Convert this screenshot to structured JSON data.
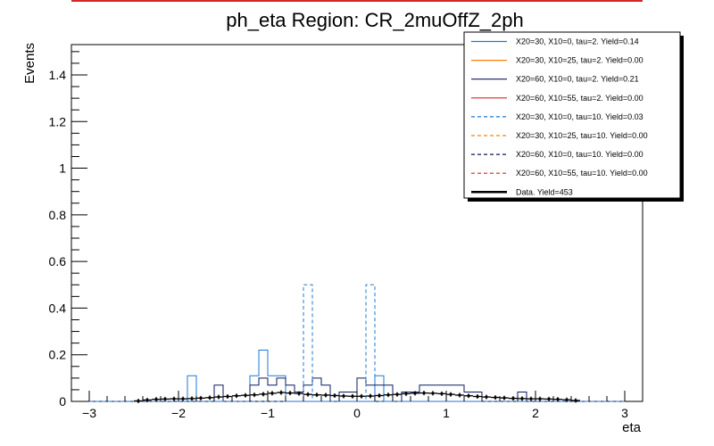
{
  "chart_data": {
    "type": "histogram",
    "title": "ph_eta Region: CR_2muOffZ_2ph",
    "xlabel": "eta",
    "ylabel": "Events",
    "xlim": [
      -3.2,
      3.2
    ],
    "ylim": [
      0,
      1.53
    ],
    "x_ticks": [
      -3,
      -2,
      -1,
      0,
      1,
      2,
      3
    ],
    "x_tick_labels": [
      "−3",
      "−2",
      "−1",
      "0",
      "1",
      "2",
      "3"
    ],
    "y_ticks": [
      0,
      0.2,
      0.4,
      0.6,
      0.8,
      1,
      1.2,
      1.4
    ],
    "y_tick_labels": [
      "0",
      "0.2",
      "0.4",
      "0.6",
      "0.8",
      "1",
      "1.2",
      "1.4"
    ],
    "bin_edges": [
      -3.0,
      -2.9,
      -2.8,
      -2.7,
      -2.6,
      -2.5,
      -2.4,
      -2.3,
      -2.2,
      -2.1,
      -2.0,
      -1.9,
      -1.8,
      -1.7,
      -1.6,
      -1.5,
      -1.4,
      -1.3,
      -1.2,
      -1.1,
      -1.0,
      -0.9,
      -0.8,
      -0.7,
      -0.6,
      -0.5,
      -0.4,
      -0.3,
      -0.2,
      -0.1,
      0.0,
      0.1,
      0.2,
      0.3,
      0.4,
      0.5,
      0.6,
      0.7,
      0.8,
      0.9,
      1.0,
      1.1,
      1.2,
      1.3,
      1.4,
      1.5,
      1.6,
      1.7,
      1.8,
      1.9,
      2.0,
      2.1,
      2.2,
      2.3,
      2.4,
      2.5,
      2.6,
      2.7,
      2.8,
      2.9,
      3.0
    ],
    "legend_position": "top-right",
    "series": [
      {
        "name": "X20=30, X10=0, tau=2. Yield=0.14",
        "color": "#1f77d4",
        "style": "solid",
        "values": [
          0,
          0,
          0,
          0,
          0,
          0,
          0,
          0,
          0,
          0,
          0,
          0.11,
          0,
          0,
          0,
          0,
          0,
          0,
          0.11,
          0.22,
          0.11,
          0.11,
          0,
          0,
          0,
          0,
          0,
          0,
          0,
          0,
          0,
          0,
          0.11,
          0,
          0,
          0,
          0,
          0,
          0,
          0,
          0,
          0,
          0,
          0,
          0,
          0,
          0,
          0,
          0,
          0,
          0,
          0,
          0,
          0,
          0,
          0,
          0,
          0,
          0,
          0
        ]
      },
      {
        "name": "X20=30, X10=25, tau=2. Yield=0.00",
        "color": "#ff7f0e",
        "style": "solid",
        "values": []
      },
      {
        "name": "X20=60, X10=0, tau=2. Yield=0.21",
        "color": "#0b1a5c",
        "style": "solid",
        "values": [
          0,
          0,
          0,
          0,
          0,
          0,
          0,
          0,
          0,
          0,
          0,
          0,
          0,
          0,
          0.07,
          0,
          0,
          0,
          0.07,
          0.1,
          0.07,
          0.1,
          0.07,
          0.04,
          0.07,
          0.1,
          0.07,
          0,
          0.04,
          0.04,
          0.1,
          0.07,
          0.07,
          0.07,
          0,
          0.04,
          0.04,
          0.07,
          0.07,
          0.07,
          0.07,
          0.07,
          0.04,
          0.04,
          0,
          0,
          0,
          0,
          0.04,
          0,
          0,
          0,
          0,
          0,
          0,
          0,
          0,
          0,
          0,
          0
        ]
      },
      {
        "name": "X20=60, X10=55, tau=2. Yield=0.00",
        "color": "#d62728",
        "style": "solid",
        "values": []
      },
      {
        "name": "X20=30, X10=0, tau=10. Yield=0.03",
        "color": "#1f77d4",
        "style": "dashed",
        "values": [
          0,
          0,
          0,
          0,
          0,
          0,
          0,
          0,
          0,
          0,
          0,
          0,
          0,
          0,
          0,
          0,
          0,
          0,
          0,
          0,
          0,
          0,
          0,
          0,
          0.5,
          0,
          0,
          0,
          0,
          0,
          0,
          0.5,
          0,
          0,
          0,
          0,
          0,
          0,
          0,
          0,
          0,
          0,
          0,
          0,
          0,
          0,
          0,
          0,
          0,
          0,
          0,
          0,
          0,
          0,
          0,
          0,
          0,
          0,
          0,
          0
        ]
      },
      {
        "name": "X20=30, X10=25, tau=10. Yield=0.00",
        "color": "#ff7f0e",
        "style": "dashed",
        "values": []
      },
      {
        "name": "X20=60, X10=0, tau=10. Yield=0.00",
        "color": "#0b1a5c",
        "style": "dashed",
        "values": []
      },
      {
        "name": "X20=60, X10=55, tau=10. Yield=0.00",
        "color": "#d62728",
        "style": "dashed",
        "values": []
      },
      {
        "name": "Data. Yield=453",
        "color": "#000000",
        "style": "points",
        "values": [
          0,
          0,
          0,
          0,
          0,
          0.002,
          0.006,
          0.009,
          0.01,
          0.011,
          0.011,
          0.012,
          0.014,
          0.016,
          0.019,
          0.021,
          0.024,
          0.026,
          0.028,
          0.031,
          0.035,
          0.038,
          0.036,
          0.034,
          0.03,
          0.028,
          0.027,
          0.025,
          0.023,
          0.022,
          0.022,
          0.023,
          0.025,
          0.028,
          0.03,
          0.033,
          0.035,
          0.036,
          0.035,
          0.033,
          0.03,
          0.027,
          0.024,
          0.021,
          0.019,
          0.017,
          0.015,
          0.013,
          0.012,
          0.011,
          0.011,
          0.01,
          0.009,
          0.007,
          0.004,
          0,
          0,
          0,
          0,
          0
        ]
      }
    ]
  }
}
